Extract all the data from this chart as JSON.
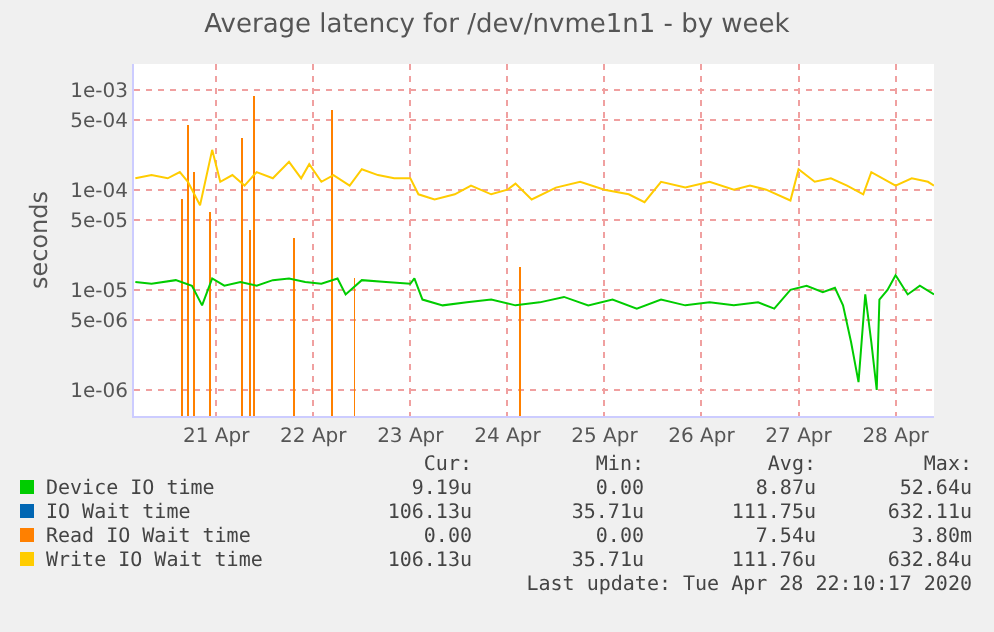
{
  "chart_data": {
    "type": "line",
    "title": "Average latency for /dev/nvme1n1 - by week",
    "ylabel": "seconds",
    "xlim": [
      "2020-04-20T15:40",
      "2020-04-28T21:30"
    ],
    "xticks": [
      {
        "value": "2020-04-21T12:00",
        "label": "21 Apr"
      },
      {
        "value": "2020-04-22T12:00",
        "label": "22 Apr"
      },
      {
        "value": "2020-04-23T12:00",
        "label": "23 Apr"
      },
      {
        "value": "2020-04-24T12:00",
        "label": "24 Apr"
      },
      {
        "value": "2020-04-25T12:00",
        "label": "25 Apr"
      },
      {
        "value": "2020-04-26T12:00",
        "label": "26 Apr"
      },
      {
        "value": "2020-04-27T12:00",
        "label": "27 Apr"
      },
      {
        "value": "2020-04-28T12:00",
        "label": "28 Apr"
      }
    ],
    "ylim": [
      5.5e-07,
      0.0018
    ],
    "yticks": [
      {
        "value": 1e-06,
        "label": "1e-06"
      },
      {
        "value": 5e-06,
        "label": "5e-06"
      },
      {
        "value": 1e-05,
        "label": "1e-05"
      },
      {
        "value": 5e-05,
        "label": "5e-05"
      },
      {
        "value": 0.0001,
        "label": "1e-04"
      },
      {
        "value": 0.0005,
        "label": "5e-04"
      },
      {
        "value": 0.001,
        "label": "1e-03"
      }
    ],
    "log": "y",
    "grid": true,
    "legend": "bottom",
    "series": [
      {
        "name": "Device IO time",
        "color": "#00cc00",
        "x": [
          "2020-04-20T16:00",
          "2020-04-20T20:00",
          "2020-04-21T02:00",
          "2020-04-21T06:00",
          "2020-04-21T08:30",
          "2020-04-21T11:00",
          "2020-04-21T14:00",
          "2020-04-21T18:00",
          "2020-04-21T22:00",
          "2020-04-22T02:00",
          "2020-04-22T06:00",
          "2020-04-22T10:00",
          "2020-04-22T14:00",
          "2020-04-22T18:00",
          "2020-04-22T20:00",
          "2020-04-23T00:00",
          "2020-04-23T06:00",
          "2020-04-23T12:00",
          "2020-04-23T13:00",
          "2020-04-23T15:00",
          "2020-04-23T20:00",
          "2020-04-24T02:00",
          "2020-04-24T08:00",
          "2020-04-24T14:00",
          "2020-04-24T20:00",
          "2020-04-25T02:00",
          "2020-04-25T08:00",
          "2020-04-25T14:00",
          "2020-04-25T20:00",
          "2020-04-26T02:00",
          "2020-04-26T08:00",
          "2020-04-26T14:00",
          "2020-04-26T20:00",
          "2020-04-27T02:00",
          "2020-04-27T06:00",
          "2020-04-27T10:00",
          "2020-04-27T14:00",
          "2020-04-27T18:00",
          "2020-04-27T21:00",
          "2020-04-27T23:00",
          "2020-04-28T01:00",
          "2020-04-28T02:50",
          "2020-04-28T04:30",
          "2020-04-28T06:00",
          "2020-04-28T07:20",
          "2020-04-28T08:00",
          "2020-04-28T10:00",
          "2020-04-28T12:00",
          "2020-04-28T15:00",
          "2020-04-28T18:00",
          "2020-04-28T21:30"
        ],
        "values": [
          1.2e-05,
          1.15e-05,
          1.25e-05,
          1.1e-05,
          7e-06,
          1.3e-05,
          1.1e-05,
          1.2e-05,
          1.1e-05,
          1.25e-05,
          1.3e-05,
          1.2e-05,
          1.15e-05,
          1.3e-05,
          9e-06,
          1.25e-05,
          1.2e-05,
          1.15e-05,
          1.3e-05,
          8e-06,
          7e-06,
          7.5e-06,
          8e-06,
          7e-06,
          7.5e-06,
          8.5e-06,
          7e-06,
          8e-06,
          6.5e-06,
          8e-06,
          7e-06,
          7.5e-06,
          7e-06,
          7.5e-06,
          6.5e-06,
          1e-05,
          1.1e-05,
          9.5e-06,
          1.05e-05,
          7e-06,
          3e-06,
          1.2e-06,
          9e-06,
          3e-06,
          1e-06,
          8e-06,
          1e-05,
          1.4e-05,
          9e-06,
          1.1e-05,
          9e-06
        ]
      },
      {
        "name": "IO Wait time",
        "color": "#0066b3"
      },
      {
        "name": "Read IO Wait time",
        "color": "#ff8000",
        "type": "bar",
        "x": [
          "2020-04-21T03:34",
          "2020-04-21T05:04",
          "2020-04-21T06:31",
          "2020-04-21T10:28",
          "2020-04-21T18:22",
          "2020-04-21T20:22",
          "2020-04-21T21:22",
          "2020-04-22T07:16",
          "2020-04-22T16:40",
          "2020-04-22T22:10",
          "2020-04-24T15:10"
        ],
        "values": [
          8e-05,
          0.00044,
          0.00015,
          6e-05,
          0.00033,
          4e-05,
          0.00087,
          3.3e-05,
          0.00063,
          1.3e-05,
          1.7e-05
        ]
      },
      {
        "name": "Write IO Wait time",
        "color": "#ffcc00",
        "x": [
          "2020-04-20T16:00",
          "2020-04-20T20:00",
          "2020-04-21T00:00",
          "2020-04-21T03:00",
          "2020-04-21T05:00",
          "2020-04-21T08:00",
          "2020-04-21T11:00",
          "2020-04-21T13:00",
          "2020-04-21T16:00",
          "2020-04-21T19:00",
          "2020-04-21T22:00",
          "2020-04-22T02:00",
          "2020-04-22T06:00",
          "2020-04-22T09:00",
          "2020-04-22T11:00",
          "2020-04-22T14:00",
          "2020-04-22T17:00",
          "2020-04-22T21:00",
          "2020-04-23T00:00",
          "2020-04-23T04:00",
          "2020-04-23T08:00",
          "2020-04-23T12:00",
          "2020-04-23T14:00",
          "2020-04-23T18:00",
          "2020-04-23T23:00",
          "2020-04-24T03:00",
          "2020-04-24T08:00",
          "2020-04-24T12:00",
          "2020-04-24T14:00",
          "2020-04-24T18:00",
          "2020-04-25T00:00",
          "2020-04-25T06:00",
          "2020-04-25T12:00",
          "2020-04-25T18:00",
          "2020-04-25T21:55",
          "2020-04-26T02:00",
          "2020-04-26T08:00",
          "2020-04-26T14:00",
          "2020-04-26T20:00",
          "2020-04-27T00:00",
          "2020-04-27T04:00",
          "2020-04-27T10:00",
          "2020-04-27T12:00",
          "2020-04-27T16:00",
          "2020-04-27T20:00",
          "2020-04-28T00:00",
          "2020-04-28T04:00",
          "2020-04-28T06:00",
          "2020-04-28T12:00",
          "2020-04-28T16:00",
          "2020-04-28T20:00",
          "2020-04-28T21:30"
        ],
        "values": [
          0.00013,
          0.00014,
          0.00013,
          0.00015,
          0.00012,
          7e-05,
          0.00025,
          0.00012,
          0.00014,
          0.00011,
          0.00015,
          0.00013,
          0.00019,
          0.00013,
          0.00018,
          0.00012,
          0.00014,
          0.00011,
          0.00016,
          0.00014,
          0.00013,
          0.00013,
          9e-05,
          8e-05,
          9e-05,
          0.00011,
          9e-05,
          0.0001,
          0.000115,
          8e-05,
          0.000105,
          0.00012,
          0.0001,
          9e-05,
          7.5e-05,
          0.00012,
          0.000105,
          0.00012,
          0.0001,
          0.00011,
          0.0001,
          7.8e-05,
          0.00016,
          0.00012,
          0.00013,
          0.00011,
          9e-05,
          0.00015,
          0.00011,
          0.00013,
          0.00012,
          0.00011
        ]
      }
    ],
    "annotations": [
      "Cur:",
      "Min:",
      "Avg:",
      "Max:",
      "9.19u",
      "0.00",
      "8.87u",
      "52.64u",
      "106.13u",
      "35.71u",
      "111.75u",
      "632.11u",
      "0.00",
      "0.00",
      "7.54u",
      "3.80m",
      "106.13u",
      "35.71u",
      "111.76u",
      "632.84u",
      "Last update: Tue Apr 28 22:10:17 2020"
    ]
  }
}
